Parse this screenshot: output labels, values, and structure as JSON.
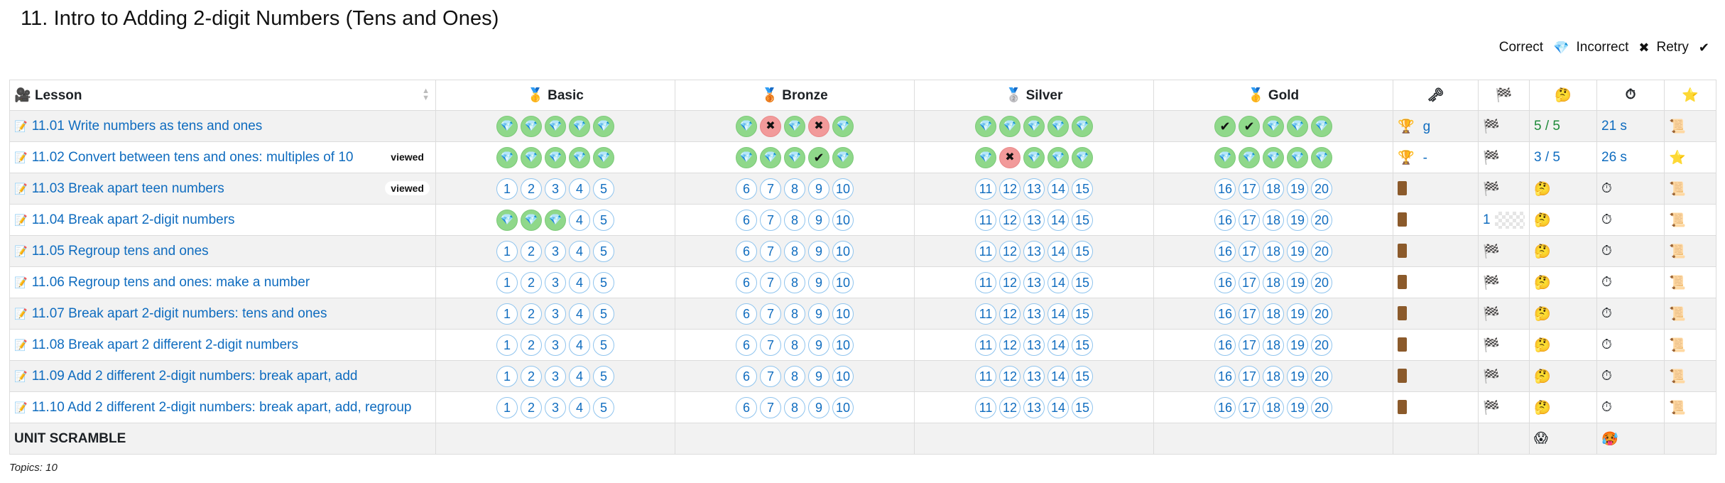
{
  "page": {
    "title": "11. Intro to Adding 2-digit Numbers (Tens and Ones)"
  },
  "legend": {
    "correct_label": "Correct",
    "correct_icon": "💎",
    "incorrect_label": "Incorrect",
    "incorrect_icon": "✖",
    "retry_label": "Retry",
    "retry_icon": "✔"
  },
  "headers": {
    "lesson": "Lesson",
    "lesson_icon": "🎥",
    "basic": "Basic",
    "basic_icon": "🥇",
    "bronze": "Bronze",
    "bronze_icon": "🥉",
    "silver": "Silver",
    "silver_icon": "🥈",
    "gold": "Gold",
    "gold_icon": "🥇",
    "key_icon": "🗝",
    "flag_icon": "🏁",
    "think_icon": "🤔",
    "timer_icon": "⏱",
    "star_icon": "⭐"
  },
  "rows": [
    {
      "label": "11.01 Write numbers as tens and ones",
      "viewed": "",
      "basic": [
        "c",
        "c",
        "c",
        "c",
        "c"
      ],
      "bronze": [
        "c",
        "x",
        "c",
        "x",
        "c"
      ],
      "silver": [
        "c",
        "c",
        "c",
        "c",
        "c"
      ],
      "gold": [
        "r",
        "r",
        "c",
        "c",
        "c"
      ],
      "key": "🏆",
      "key_text": "g",
      "flag": "🏁",
      "score": "5 / 5",
      "time": "21 s",
      "last": "📜"
    },
    {
      "label": "11.02 Convert between tens and ones: multiples of 10",
      "viewed": "viewed",
      "basic": [
        "c",
        "c",
        "c",
        "c",
        "c"
      ],
      "bronze": [
        "c",
        "c",
        "c",
        "r",
        "c"
      ],
      "silver": [
        "c",
        "x",
        "c",
        "c",
        "c"
      ],
      "gold": [
        "c",
        "c",
        "c",
        "c",
        "c"
      ],
      "key": "🏆",
      "key_text": "-",
      "flag": "🏁",
      "score": "3 / 5",
      "time": "26 s",
      "last": "⭐"
    },
    {
      "label": "11.03 Break apart teen numbers",
      "viewed": "viewed",
      "basic": [
        "1",
        "2",
        "3",
        "4",
        "5"
      ],
      "bronze": [
        "6",
        "7",
        "8",
        "9",
        "10"
      ],
      "silver": [
        "11",
        "12",
        "13",
        "14",
        "15"
      ],
      "gold": [
        "16",
        "17",
        "18",
        "19",
        "20"
      ],
      "key": "door",
      "key_text": "",
      "flag": "🏁",
      "score": "🤔",
      "time": "⏱",
      "last": "📜"
    },
    {
      "label": "11.04 Break apart 2-digit numbers",
      "viewed": "",
      "basic": [
        "c",
        "c",
        "c",
        "4",
        "5"
      ],
      "bronze": [
        "6",
        "7",
        "8",
        "9",
        "10"
      ],
      "silver": [
        "11",
        "12",
        "13",
        "14",
        "15"
      ],
      "gold": [
        "16",
        "17",
        "18",
        "19",
        "20"
      ],
      "key": "door",
      "key_text": "",
      "flag": "1",
      "score": "🤔",
      "time": "⏱",
      "last": "📜"
    },
    {
      "label": "11.05 Regroup tens and ones",
      "viewed": "",
      "basic": [
        "1",
        "2",
        "3",
        "4",
        "5"
      ],
      "bronze": [
        "6",
        "7",
        "8",
        "9",
        "10"
      ],
      "silver": [
        "11",
        "12",
        "13",
        "14",
        "15"
      ],
      "gold": [
        "16",
        "17",
        "18",
        "19",
        "20"
      ],
      "key": "door",
      "key_text": "",
      "flag": "🏁",
      "score": "🤔",
      "time": "⏱",
      "last": "📜"
    },
    {
      "label": "11.06 Regroup tens and ones: make a number",
      "viewed": "",
      "basic": [
        "1",
        "2",
        "3",
        "4",
        "5"
      ],
      "bronze": [
        "6",
        "7",
        "8",
        "9",
        "10"
      ],
      "silver": [
        "11",
        "12",
        "13",
        "14",
        "15"
      ],
      "gold": [
        "16",
        "17",
        "18",
        "19",
        "20"
      ],
      "key": "door",
      "key_text": "",
      "flag": "🏁",
      "score": "🤔",
      "time": "⏱",
      "last": "📜"
    },
    {
      "label": "11.07 Break apart 2-digit numbers: tens and ones",
      "viewed": "",
      "basic": [
        "1",
        "2",
        "3",
        "4",
        "5"
      ],
      "bronze": [
        "6",
        "7",
        "8",
        "9",
        "10"
      ],
      "silver": [
        "11",
        "12",
        "13",
        "14",
        "15"
      ],
      "gold": [
        "16",
        "17",
        "18",
        "19",
        "20"
      ],
      "key": "door",
      "key_text": "",
      "flag": "🏁",
      "score": "🤔",
      "time": "⏱",
      "last": "📜"
    },
    {
      "label": "11.08 Break apart 2 different 2-digit numbers",
      "viewed": "",
      "basic": [
        "1",
        "2",
        "3",
        "4",
        "5"
      ],
      "bronze": [
        "6",
        "7",
        "8",
        "9",
        "10"
      ],
      "silver": [
        "11",
        "12",
        "13",
        "14",
        "15"
      ],
      "gold": [
        "16",
        "17",
        "18",
        "19",
        "20"
      ],
      "key": "door",
      "key_text": "",
      "flag": "🏁",
      "score": "🤔",
      "time": "⏱",
      "last": "📜"
    },
    {
      "label": "11.09 Add 2 different 2-digit numbers: break apart, add",
      "viewed": "",
      "basic": [
        "1",
        "2",
        "3",
        "4",
        "5"
      ],
      "bronze": [
        "6",
        "7",
        "8",
        "9",
        "10"
      ],
      "silver": [
        "11",
        "12",
        "13",
        "14",
        "15"
      ],
      "gold": [
        "16",
        "17",
        "18",
        "19",
        "20"
      ],
      "key": "door",
      "key_text": "",
      "flag": "🏁",
      "score": "🤔",
      "time": "⏱",
      "last": "📜"
    },
    {
      "label": "11.10 Add 2 different 2-digit numbers: break apart, add, regroup",
      "viewed": "",
      "basic": [
        "1",
        "2",
        "3",
        "4",
        "5"
      ],
      "bronze": [
        "6",
        "7",
        "8",
        "9",
        "10"
      ],
      "silver": [
        "11",
        "12",
        "13",
        "14",
        "15"
      ],
      "gold": [
        "16",
        "17",
        "18",
        "19",
        "20"
      ],
      "key": "door",
      "key_text": "",
      "flag": "🏁",
      "score": "🤔",
      "time": "⏱",
      "last": "📜"
    }
  ],
  "scramble": {
    "label": "UNIT SCRAMBLE",
    "score_icon": "😱",
    "time_icon": "🥵"
  },
  "footer": {
    "topics": "Topics: 10"
  }
}
